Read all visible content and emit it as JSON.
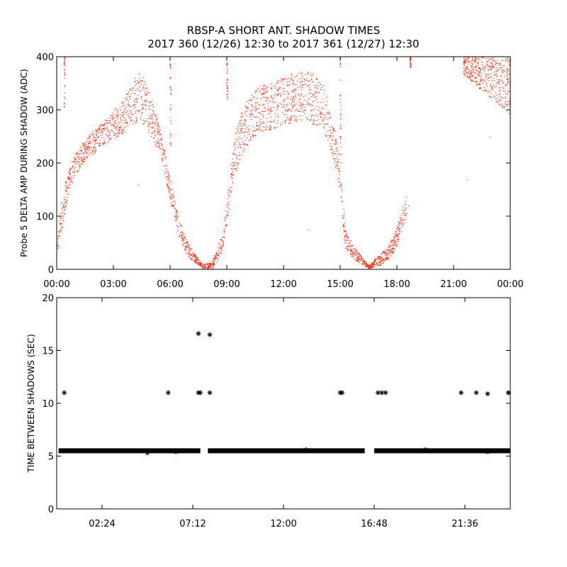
{
  "title_line1": "RBSP-A SHORT ANT. SHADOW TIMES",
  "title_line2": "2017 360 (12/26) 12:30 to 2017 361 (12/27) 12:30",
  "colors": {
    "top_series": "#ff2200",
    "bottom_series": "#000000"
  },
  "chart_data": [
    {
      "type": "scatter",
      "ylabel": "Probe 5 DELTA AMP DURING SHADOW (ADC)",
      "xlim": [
        0,
        24
      ],
      "ylim": [
        0,
        400
      ],
      "x_ticks": [
        0,
        3,
        6,
        9,
        12,
        15,
        18,
        21,
        24
      ],
      "x_tick_labels": [
        "00:00",
        "03:00",
        "06:00",
        "09:00",
        "12:00",
        "15:00",
        "18:00",
        "21:00",
        "00:00"
      ],
      "y_ticks": [
        0,
        100,
        200,
        300,
        400
      ],
      "y_tick_labels": [
        "0",
        "100",
        "200",
        "300",
        "400"
      ],
      "series": [
        {
          "color": "#ff2200",
          "envelope_upper": [
            [
              0,
              60
            ],
            [
              0.3,
              150
            ],
            [
              0.6,
              185
            ],
            [
              1,
              220
            ],
            [
              1.5,
              245
            ],
            [
              2,
              265
            ],
            [
              2.5,
              280
            ],
            [
              3,
              300
            ],
            [
              3.5,
              320
            ],
            [
              4,
              350
            ],
            [
              4.3,
              375
            ],
            [
              4.6,
              360
            ],
            [
              5,
              320
            ],
            [
              5.5,
              260
            ],
            [
              6,
              170
            ],
            [
              6.5,
              90
            ],
            [
              7,
              45
            ],
            [
              7.5,
              20
            ],
            [
              7.7,
              10
            ],
            [
              8.2,
              15
            ],
            [
              8.5,
              40
            ],
            [
              8.8,
              80
            ],
            [
              9.1,
              170
            ],
            [
              9.4,
              250
            ],
            [
              9.8,
              300
            ],
            [
              10.3,
              330
            ],
            [
              10.8,
              350
            ],
            [
              11.5,
              350
            ],
            [
              12,
              365
            ],
            [
              12.5,
              370
            ],
            [
              13,
              375
            ],
            [
              13.5,
              370
            ],
            [
              14,
              355
            ],
            [
              14.3,
              330
            ],
            [
              14.6,
              280
            ],
            [
              14.9,
              220
            ],
            [
              15.1,
              140
            ],
            [
              15.3,
              70
            ],
            [
              15.7,
              45
            ],
            [
              16.1,
              25
            ],
            [
              16.5,
              8
            ],
            [
              17.1,
              30
            ],
            [
              17.5,
              45
            ],
            [
              17.9,
              70
            ],
            [
              18.2,
              110
            ],
            [
              18.5,
              140
            ]
          ],
          "envelope_lower": [
            [
              0,
              30
            ],
            [
              0.3,
              80
            ],
            [
              0.6,
              140
            ],
            [
              1,
              180
            ],
            [
              1.5,
              205
            ],
            [
              2,
              220
            ],
            [
              2.5,
              235
            ],
            [
              3,
              245
            ],
            [
              3.5,
              255
            ],
            [
              4,
              270
            ],
            [
              4.3,
              280
            ],
            [
              4.6,
              270
            ],
            [
              5,
              250
            ],
            [
              5.5,
              210
            ],
            [
              6,
              130
            ],
            [
              6.5,
              55
            ],
            [
              7,
              20
            ],
            [
              7.5,
              8
            ],
            [
              7.7,
              2
            ],
            [
              8.2,
              2
            ],
            [
              8.5,
              15
            ],
            [
              8.8,
              40
            ],
            [
              9.1,
              110
            ],
            [
              9.4,
              175
            ],
            [
              9.8,
              220
            ],
            [
              10.3,
              245
            ],
            [
              10.8,
              260
            ],
            [
              11.5,
              265
            ],
            [
              12,
              275
            ],
            [
              12.5,
              275
            ],
            [
              13,
              280
            ],
            [
              13.5,
              275
            ],
            [
              14,
              265
            ],
            [
              14.3,
              245
            ],
            [
              14.6,
              210
            ],
            [
              14.9,
              160
            ],
            [
              15.1,
              80
            ],
            [
              15.3,
              35
            ],
            [
              15.7,
              20
            ],
            [
              16.1,
              10
            ],
            [
              16.5,
              2
            ],
            [
              17.1,
              8
            ],
            [
              17.5,
              18
            ],
            [
              17.9,
              35
            ],
            [
              18.2,
              70
            ],
            [
              18.5,
              100
            ]
          ],
          "upper_cluster": {
            "x_range": [
              21.5,
              24
            ],
            "y_range": [
              290,
              400
            ]
          },
          "spikes": [
            [
              0.4,
              300,
              400
            ],
            [
              6.0,
              230,
              390
            ],
            [
              9.0,
              320,
              390
            ],
            [
              15.0,
              200,
              400
            ],
            [
              18.7,
              380,
              400
            ]
          ],
          "scattered_points": [
            [
              4.3,
              160
            ],
            [
              13.3,
              75
            ],
            [
              18.6,
              120
            ],
            [
              21.7,
              170
            ],
            [
              22.9,
              250
            ]
          ]
        }
      ]
    },
    {
      "type": "scatter",
      "ylabel": "TIME BETWEEN SHADOWS (SEC)",
      "xlim": [
        0,
        24
      ],
      "ylim": [
        0,
        20
      ],
      "x_ticks": [
        2.4,
        7.2,
        12.0,
        16.8,
        21.6
      ],
      "x_tick_labels": [
        "02:24",
        "07:12",
        "12:00",
        "16:48",
        "21:36"
      ],
      "y_ticks": [
        0,
        5,
        10,
        15,
        20
      ],
      "y_tick_labels": [
        "0",
        "5",
        "10",
        "15",
        "20"
      ],
      "series": [
        {
          "color": "#000000",
          "baseline_segments": [
            [
              0.1,
              7.6,
              5.5
            ],
            [
              8.0,
              16.3,
              5.5
            ],
            [
              16.8,
              24.0,
              5.5
            ]
          ],
          "points": [
            [
              0.4,
              11
            ],
            [
              5.9,
              11
            ],
            [
              7.5,
              11
            ],
            [
              7.6,
              11
            ],
            [
              8.1,
              11
            ],
            [
              7.5,
              16.6
            ],
            [
              8.1,
              16.5
            ],
            [
              15.0,
              11
            ],
            [
              15.1,
              11
            ],
            [
              17.0,
              11
            ],
            [
              17.2,
              11
            ],
            [
              17.4,
              11
            ],
            [
              21.4,
              11
            ],
            [
              22.2,
              11
            ],
            [
              22.8,
              10.9
            ],
            [
              23.9,
              11
            ],
            [
              24.0,
              11
            ]
          ],
          "baseline_dips": [
            [
              4.8,
              5.3
            ],
            [
              6.3,
              5.4
            ],
            [
              13.2,
              5.6
            ],
            [
              19.5,
              5.6
            ],
            [
              22.8,
              5.4
            ]
          ]
        }
      ]
    }
  ]
}
